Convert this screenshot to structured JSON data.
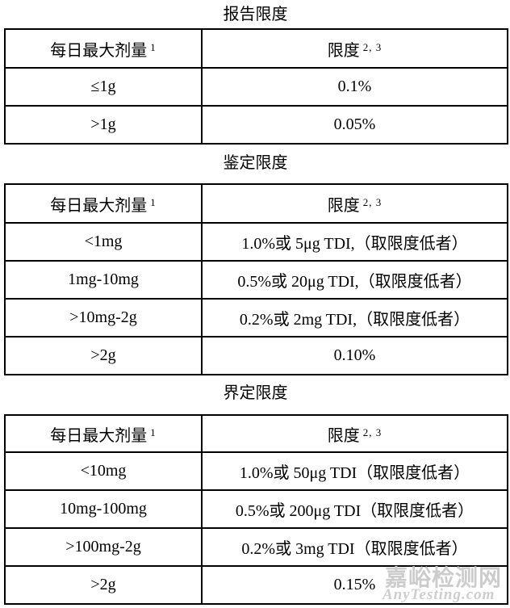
{
  "tables": [
    {
      "title": "报告限度",
      "header": {
        "col1": "每日最大剂量",
        "col1_sup": "1",
        "col2": "限度",
        "col2_sup": "2, 3"
      },
      "rows": [
        {
          "dose": "≤1g",
          "limit": "0.1%"
        },
        {
          "dose": ">1g",
          "limit": "0.05%"
        }
      ]
    },
    {
      "title": "鉴定限度",
      "header": {
        "col1": "每日最大剂量",
        "col1_sup": "1",
        "col2": "限度",
        "col2_sup": "2, 3"
      },
      "rows": [
        {
          "dose": "<1mg",
          "limit": "1.0%或 5μg TDI,（取限度低者）"
        },
        {
          "dose": "1mg-10mg",
          "limit": "0.5%或 20μg TDI,（取限度低者）"
        },
        {
          "dose": ">10mg-2g",
          "limit": "0.2%或 2mg TDI,（取限度低者）"
        },
        {
          "dose": ">2g",
          "limit": "0.10%"
        }
      ]
    },
    {
      "title": "界定限度",
      "header": {
        "col1": "每日最大剂量",
        "col1_sup": "1",
        "col2": "限度",
        "col2_sup": "2, 3"
      },
      "rows": [
        {
          "dose": "<10mg",
          "limit": "1.0%或 50μg TDI（取限度低者）"
        },
        {
          "dose": "10mg-100mg",
          "limit": "0.5%或 200μg TDI（取限度低者）"
        },
        {
          "dose": ">100mg-2g",
          "limit": "0.2%或 3mg TDI（取限度低者）"
        },
        {
          "dose": ">2g",
          "limit": "0.15%"
        }
      ]
    }
  ],
  "watermark": {
    "cn": "嘉峪检测网",
    "en": "AnyTesting.com",
    "color": "#cccccc"
  },
  "colors": {
    "background": "#ffffff",
    "text": "#000000",
    "border": "#000000"
  }
}
